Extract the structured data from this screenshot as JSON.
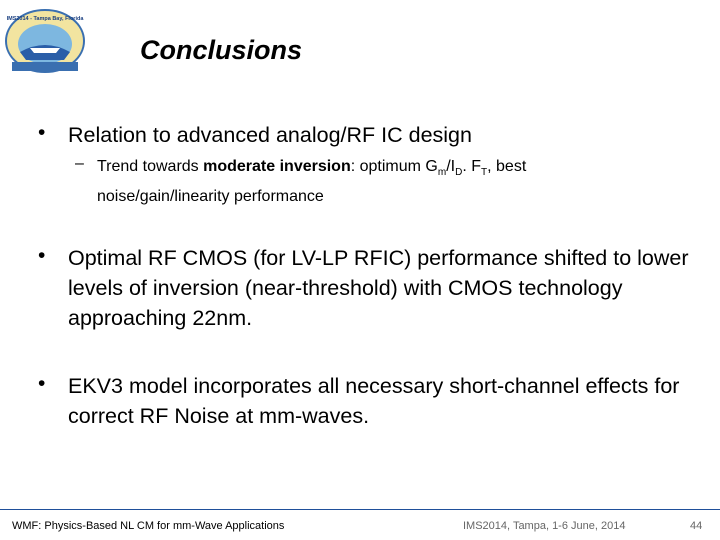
{
  "header": {
    "title": "Conclusions",
    "logo_text": "IMS2014 - Tampa Bay, Florida"
  },
  "bullets": [
    {
      "text": "Relation to advanced analog/RF IC design",
      "sub": {
        "parts": [
          "Trend towards ",
          "moderate inversion",
          ": optimum G",
          "m",
          "/I",
          "D",
          ". F",
          "T",
          ", best noise/gain/linearity performance"
        ]
      }
    },
    {
      "text": "Optimal RF CMOS (for LV-LP RFIC) performance shifted to lower levels of inversion (near-threshold) with CMOS technology approaching 22nm."
    },
    {
      "text": "EKV3 model incorporates all necessary short-channel effects for correct RF Noise at mm-waves."
    }
  ],
  "footer": {
    "left": "WMF: Physics-Based NL CM for mm-Wave Applications",
    "center": "IMS2014, Tampa, 1-6 June, 2014",
    "page": "44"
  }
}
